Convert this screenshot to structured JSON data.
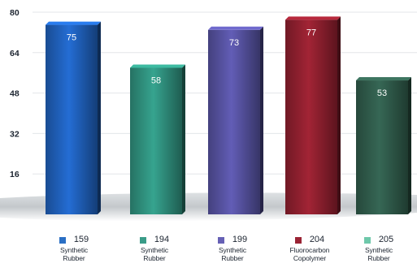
{
  "chart_data": {
    "type": "bar",
    "categories": [
      "159",
      "194",
      "199",
      "204",
      "205"
    ],
    "values": [
      75,
      58,
      73,
      77,
      53
    ],
    "descriptions": [
      "Synthetic Rubber",
      "Synthetic Rubber",
      "Synthetic Rubber",
      "Fluorocarbon Copolymer",
      "Synthetic Rubber"
    ],
    "colors": [
      "#1f5fb8",
      "#2f8f7c",
      "#55519e",
      "#8d1f2e",
      "#2f5a4a"
    ],
    "swatch_colors": [
      "#2a6fc4",
      "#3a9c88",
      "#6660b5",
      "#9a2334",
      "#6ec8aa"
    ],
    "yticks": [
      16,
      32,
      48,
      64,
      80
    ],
    "ylim": [
      0,
      80
    ],
    "grid": true,
    "legend_position": "bottom",
    "title": "",
    "xlabel": "",
    "ylabel": ""
  },
  "legend": [
    {
      "code": "159",
      "line1": "Synthetic",
      "line2": "Rubber"
    },
    {
      "code": "194",
      "line1": "Synthetic",
      "line2": "Rubber"
    },
    {
      "code": "199",
      "line1": "Synthetic",
      "line2": "Rubber"
    },
    {
      "code": "204",
      "line1": "Fluorocarbon",
      "line2": "Copolymer"
    },
    {
      "code": "205",
      "line1": "Synthetic",
      "line2": "Rubber"
    }
  ]
}
